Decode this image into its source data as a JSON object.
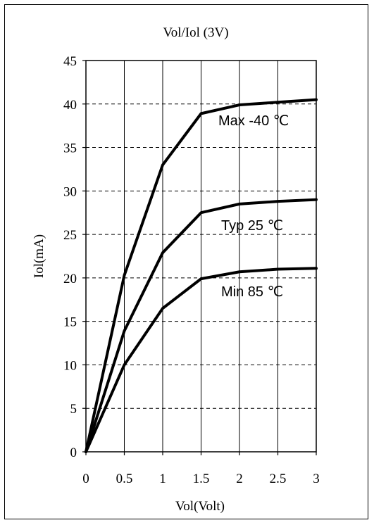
{
  "chart_data": {
    "type": "line",
    "title": "Vol/Iol (3V)",
    "xlabel": "Vol(Volt)",
    "ylabel": "Iol(mA)",
    "xlim": [
      0,
      3
    ],
    "ylim": [
      0,
      45
    ],
    "x_ticks": [
      "0",
      "0.5",
      "1",
      "1.5",
      "2",
      "2.5",
      "3"
    ],
    "y_ticks": [
      "0",
      "5",
      "10",
      "15",
      "20",
      "25",
      "30",
      "35",
      "40",
      "45"
    ],
    "grid": {
      "vertical": "solid",
      "horizontal": "dashed"
    },
    "x": [
      0,
      0.5,
      1,
      1.5,
      2,
      2.5,
      3
    ],
    "series": [
      {
        "name": "Max -40 ℃",
        "values": [
          0,
          20.3,
          33.0,
          38.9,
          39.9,
          40.2,
          40.5
        ]
      },
      {
        "name": "Typ 25 ℃",
        "values": [
          0,
          13.9,
          22.9,
          27.5,
          28.5,
          28.8,
          29.0
        ]
      },
      {
        "name": "Min 85 ℃",
        "values": [
          0,
          10.0,
          16.5,
          19.9,
          20.7,
          21.0,
          21.1
        ]
      }
    ]
  }
}
